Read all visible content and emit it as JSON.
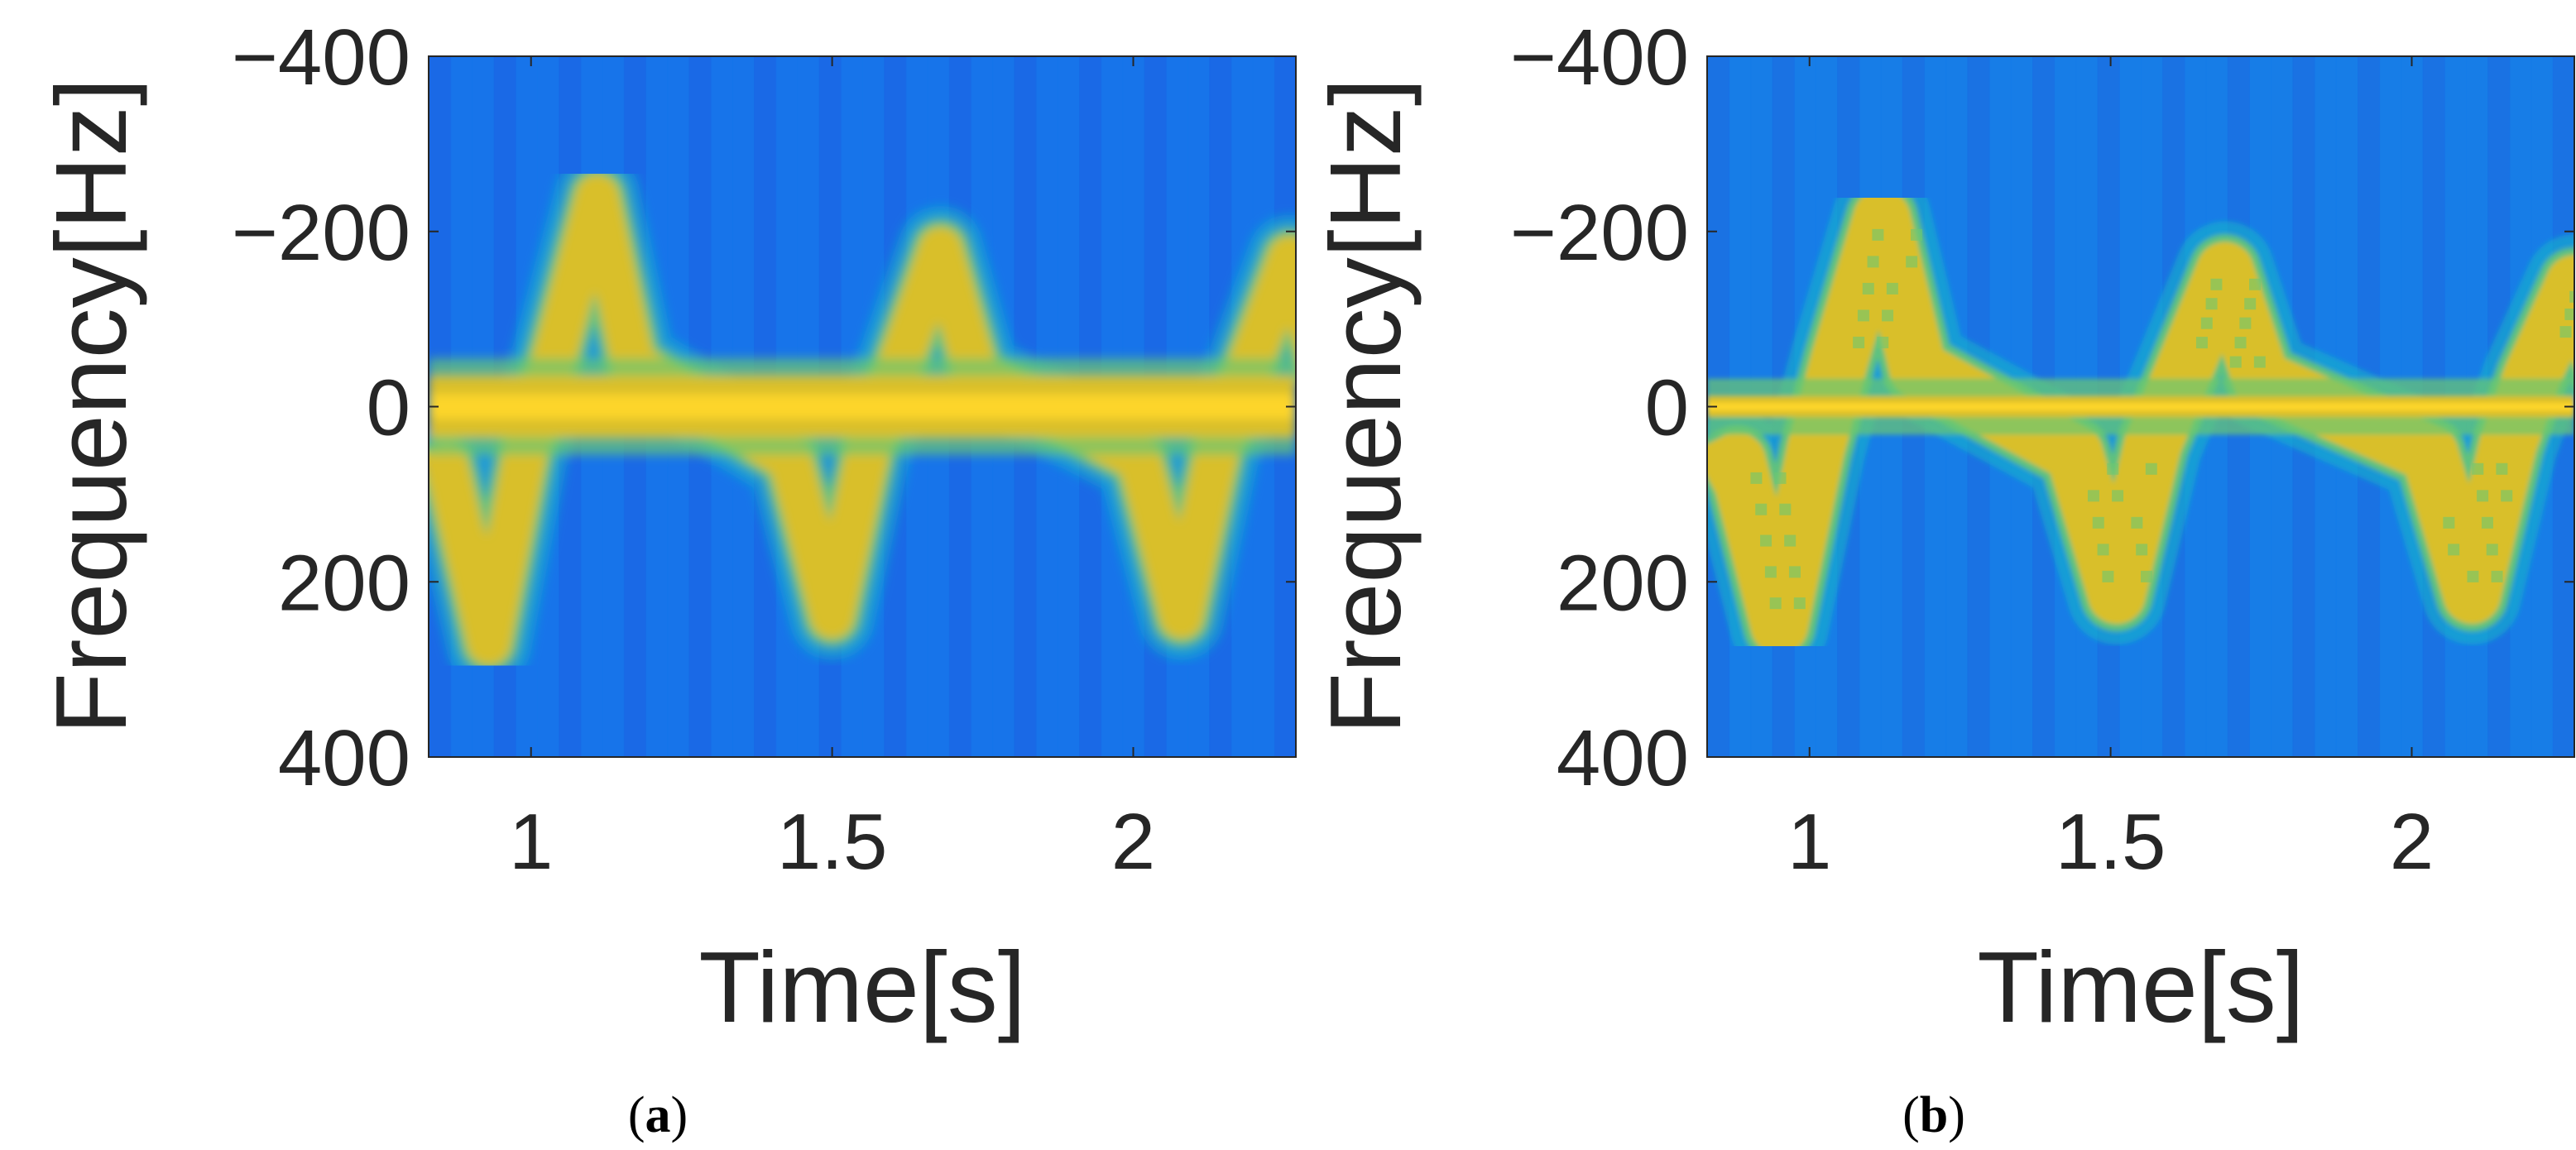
{
  "chart_data": [
    {
      "type": "heatmap",
      "panel_label": "a",
      "xlabel": "Time[s]",
      "ylabel": "Frequency[Hz]",
      "xlim": [
        0.83,
        2.27
      ],
      "ylim": [
        -400,
        400
      ],
      "y_reversed": true,
      "xticks": [
        1,
        1.5,
        2
      ],
      "xtick_labels": [
        "1",
        "1.5",
        "2"
      ],
      "yticks": [
        -400,
        -200,
        0,
        200,
        400
      ],
      "ytick_labels": [
        "−400",
        "−200",
        "0",
        "200",
        "400"
      ],
      "colormap": [
        "#1a3fd6",
        "#0a78f0",
        "#12b6c8",
        "#6cc871",
        "#d9bf2c",
        "#fdd52a"
      ],
      "background_color": "#1a73ea",
      "dc_band_halfwidth_hz": 35,
      "micro_doppler_peaks": [
        {
          "t": 0.93,
          "f": 270
        },
        {
          "t": 1.11,
          "f": -240
        },
        {
          "t": 1.5,
          "f": 240
        },
        {
          "t": 1.68,
          "f": -180
        },
        {
          "t": 2.08,
          "f": 240
        },
        {
          "t": 2.26,
          "f": -170
        }
      ]
    },
    {
      "type": "heatmap",
      "panel_label": "b",
      "xlabel": "Time[s]",
      "ylabel": "Frequency[Hz]",
      "xlim": [
        0.83,
        2.27
      ],
      "ylim": [
        -400,
        400
      ],
      "y_reversed": true,
      "xticks": [
        1,
        1.5,
        2
      ],
      "xtick_labels": [
        "1",
        "1.5",
        "2"
      ],
      "yticks": [
        -400,
        -200,
        0,
        200,
        400
      ],
      "ytick_labels": [
        "−400",
        "−200",
        "0",
        "200",
        "400"
      ],
      "colormap": [
        "#1a3fd6",
        "#0a78f0",
        "#12b6c8",
        "#6cc871",
        "#d9bf2c",
        "#fdd52a"
      ],
      "background_color": "#1a7ee6",
      "dc_band_halfwidth_hz": 12,
      "micro_doppler_peaks": [
        {
          "t": 0.95,
          "f": 250
        },
        {
          "t": 1.12,
          "f": -215
        },
        {
          "t": 1.51,
          "f": 215
        },
        {
          "t": 1.69,
          "f": -155
        },
        {
          "t": 2.1,
          "f": 215
        },
        {
          "t": 2.27,
          "f": -140
        }
      ]
    }
  ]
}
